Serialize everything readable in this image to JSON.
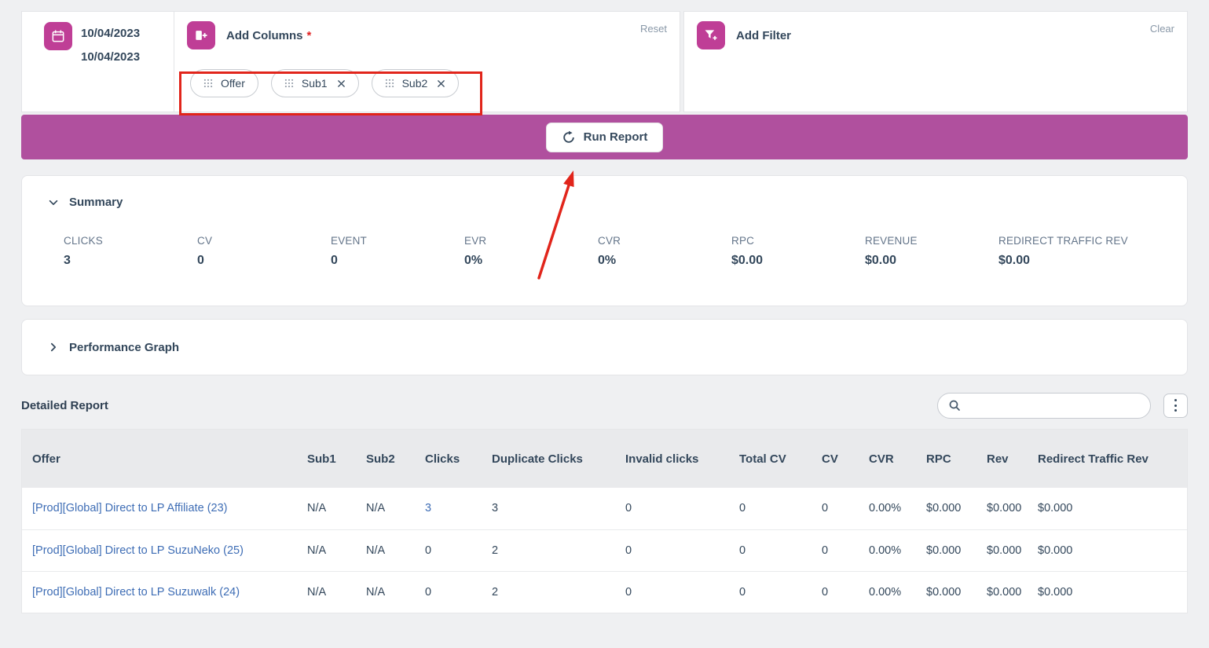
{
  "theme": {
    "accent_bar": "#b0509e",
    "icon_background": "#bf3e96",
    "annotation_red": "#e1251b",
    "link_blue": "#3e6db5",
    "text_dark": "#33475b"
  },
  "date_panel": {
    "start_date": "10/04/2023",
    "end_date": "10/04/2023"
  },
  "add_columns": {
    "title": "Add Columns",
    "required_marker": "*",
    "reset_label": "Reset",
    "chips": [
      {
        "label": "Offer"
      },
      {
        "label": "Sub1"
      },
      {
        "label": "Sub2"
      }
    ]
  },
  "add_filter": {
    "title": "Add Filter",
    "clear_label": "Clear"
  },
  "run_report": {
    "label": "Run Report"
  },
  "summary": {
    "title": "Summary",
    "metrics": [
      {
        "label": "CLICKS",
        "value": "3"
      },
      {
        "label": "CV",
        "value": "0"
      },
      {
        "label": "EVENT",
        "value": "0"
      },
      {
        "label": "EVR",
        "value": "0%"
      },
      {
        "label": "CVR",
        "value": "0%"
      },
      {
        "label": "RPC",
        "value": "$0.00"
      },
      {
        "label": "REVENUE",
        "value": "$0.00"
      },
      {
        "label": "REDIRECT TRAFFIC REV",
        "value": "$0.00"
      }
    ]
  },
  "performance_graph": {
    "title": "Performance Graph"
  },
  "detailed_report": {
    "title": "Detailed Report",
    "table": {
      "columns": [
        "Offer",
        "Sub1",
        "Sub2",
        "Clicks",
        "Duplicate Clicks",
        "Invalid clicks",
        "Total CV",
        "CV",
        "CVR",
        "RPC",
        "Rev",
        "Redirect Traffic Rev"
      ],
      "rows": [
        {
          "cells": [
            "[Prod][Global] Direct to LP Affiliate (23)",
            "N/A",
            "N/A",
            "3",
            "3",
            "0",
            "0",
            "0",
            "0.00%",
            "$0.000",
            "$0.000",
            "$0.000"
          ],
          "clicks_linked": true
        },
        {
          "cells": [
            "[Prod][Global] Direct to LP SuzuNeko (25)",
            "N/A",
            "N/A",
            "0",
            "2",
            "0",
            "0",
            "0",
            "0.00%",
            "$0.000",
            "$0.000",
            "$0.000"
          ],
          "clicks_linked": false
        },
        {
          "cells": [
            "[Prod][Global] Direct to LP Suzuwalk (24)",
            "N/A",
            "N/A",
            "0",
            "2",
            "0",
            "0",
            "0",
            "0.00%",
            "$0.000",
            "$0.000",
            "$0.000"
          ],
          "clicks_linked": false
        }
      ]
    }
  }
}
